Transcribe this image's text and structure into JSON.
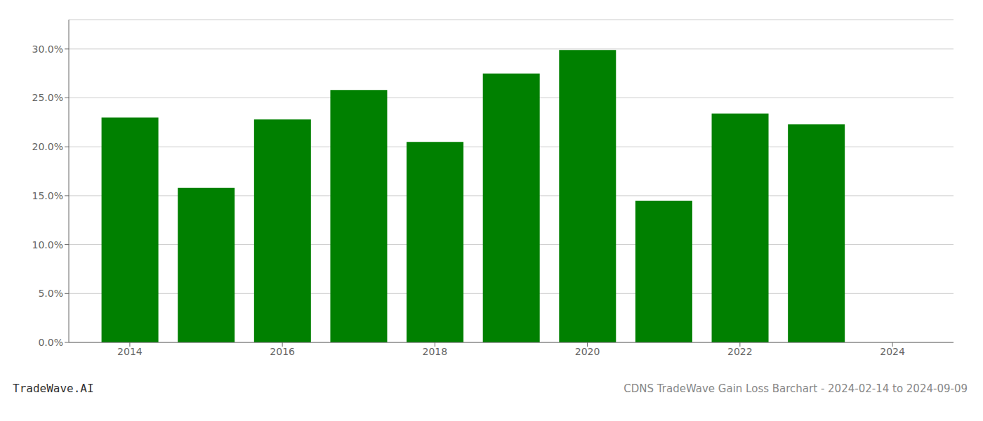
{
  "chart_data": {
    "type": "bar",
    "title": "CDNS TradeWave Gain Loss Barchart - 2024-02-14 to 2024-09-09",
    "annotations": [
      "TradeWave.AI"
    ],
    "x": [
      2014,
      2015,
      2016,
      2017,
      2018,
      2019,
      2020,
      2021,
      2022,
      2023
    ],
    "values": [
      0.23,
      0.158,
      0.228,
      0.258,
      0.205,
      0.275,
      0.299,
      0.145,
      0.234,
      0.223
    ],
    "color": "#008000",
    "xlim": [
      2013.2,
      2024.8
    ],
    "xticks": [
      2014,
      2016,
      2018,
      2020,
      2022,
      2024
    ],
    "ylim": [
      0,
      0.33
    ],
    "yticks": [
      {
        "value": 0.0,
        "label": "0.0%"
      },
      {
        "value": 0.05,
        "label": "5.0%"
      },
      {
        "value": 0.1,
        "label": "10.0%"
      },
      {
        "value": 0.15,
        "label": "15.0%"
      },
      {
        "value": 0.2,
        "label": "20.0%"
      },
      {
        "value": 0.25,
        "label": "25.0%"
      },
      {
        "value": 0.3,
        "label": "30.0%"
      }
    ],
    "grid": true
  }
}
